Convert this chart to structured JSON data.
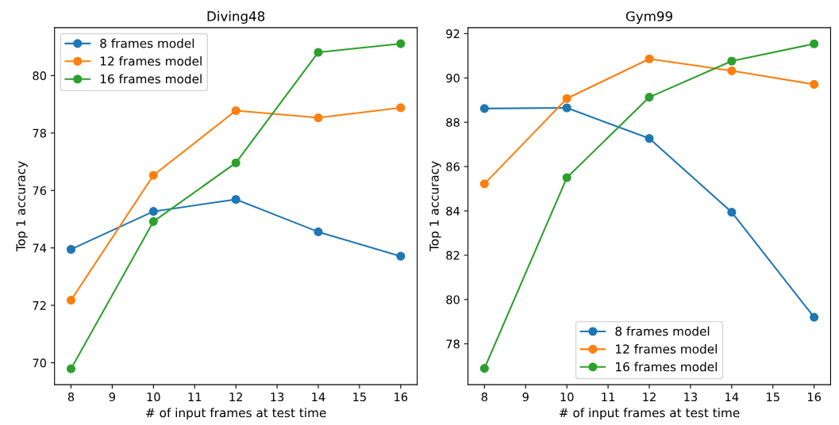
{
  "chart_data": [
    {
      "type": "line",
      "title": "Diving48",
      "xlabel": "# of input frames at test time",
      "ylabel": "Top 1 accuracy",
      "x": [
        8,
        10,
        12,
        14,
        16
      ],
      "xlim": [
        7.6,
        16.4
      ],
      "xticks": [
        8,
        9,
        10,
        11,
        12,
        13,
        14,
        15,
        16
      ],
      "ylim": [
        69.24,
        81.67
      ],
      "yticks": [
        70,
        72,
        74,
        76,
        78,
        80
      ],
      "marker": "circle",
      "line_style": "solid",
      "grid": false,
      "legend": "top left",
      "series": [
        {
          "name": "8 frames model",
          "color": "#1f77b4",
          "values": [
            73.95,
            75.27,
            75.69,
            74.56,
            73.71
          ]
        },
        {
          "name": "12 frames model",
          "color": "#ff7f0e",
          "values": [
            72.18,
            76.53,
            78.78,
            78.53,
            78.88
          ]
        },
        {
          "name": "16 frames model",
          "color": "#2ca02c",
          "values": [
            69.79,
            74.92,
            76.96,
            80.81,
            81.11
          ]
        }
      ]
    },
    {
      "type": "line",
      "title": "Gym99",
      "xlabel": "# of input frames at test time",
      "ylabel": "Top 1 accuracy",
      "x": [
        8,
        10,
        12,
        14,
        16
      ],
      "xlim": [
        7.6,
        16.4
      ],
      "xticks": [
        8,
        9,
        10,
        11,
        12,
        13,
        14,
        15,
        16
      ],
      "ylim": [
        76.16,
        92.27
      ],
      "yticks": [
        78,
        80,
        82,
        84,
        86,
        88,
        90,
        92
      ],
      "marker": "circle",
      "line_style": "solid",
      "grid": false,
      "legend": "bottom",
      "series": [
        {
          "name": "8 frames model",
          "color": "#1f77b4",
          "values": [
            88.62,
            88.65,
            87.27,
            83.94,
            79.2
          ]
        },
        {
          "name": "12 frames model",
          "color": "#ff7f0e",
          "values": [
            85.22,
            89.07,
            90.86,
            90.32,
            89.71
          ]
        },
        {
          "name": "16 frames model",
          "color": "#2ca02c",
          "values": [
            76.89,
            85.5,
            89.13,
            90.76,
            91.54
          ]
        }
      ]
    }
  ]
}
